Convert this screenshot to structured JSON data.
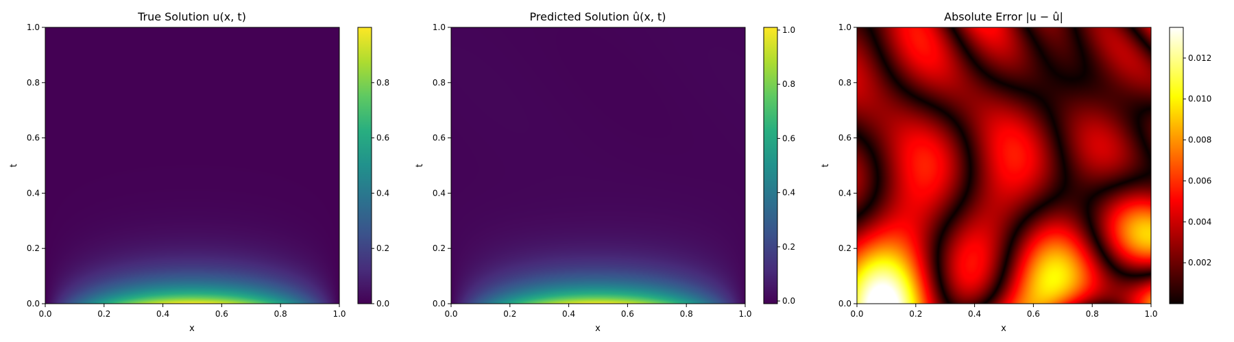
{
  "chart_data": [
    {
      "type": "heatmap",
      "title": "True Solution u(x, t)",
      "xlabel": "x",
      "ylabel": "t",
      "xlim": [
        0,
        1
      ],
      "ylim": [
        0,
        1
      ],
      "x_ticks": [
        "0.0",
        "0.2",
        "0.4",
        "0.6",
        "0.8",
        "1.0"
      ],
      "y_ticks": [
        "0.0",
        "0.2",
        "0.4",
        "0.6",
        "0.8",
        "1.0"
      ],
      "colormap": "viridis",
      "colorbar_range": [
        0,
        1.0
      ],
      "colorbar_ticks": [
        "0.0",
        "0.2",
        "0.4",
        "0.6",
        "0.8"
      ],
      "field": "u(x,t) = sin(pi x) exp(-pi^2 k t), peak 1.0 at (0.5, 0), decays to ~0 by t = 0.4"
    },
    {
      "type": "heatmap",
      "title": "Predicted Solution û(x, t)",
      "xlabel": "x",
      "ylabel": "t",
      "xlim": [
        0,
        1
      ],
      "ylim": [
        0,
        1
      ],
      "x_ticks": [
        "0.0",
        "0.2",
        "0.4",
        "0.6",
        "0.8",
        "1.0"
      ],
      "y_ticks": [
        "0.0",
        "0.2",
        "0.4",
        "0.6",
        "0.8",
        "1.0"
      ],
      "colormap": "viridis",
      "colorbar_range": [
        -0.01,
        1.01
      ],
      "colorbar_ticks": [
        "0.0",
        "0.2",
        "0.4",
        "0.6",
        "0.8",
        "1.0"
      ]
    },
    {
      "type": "heatmap",
      "title": "Absolute Error |u − û|",
      "xlabel": "x",
      "ylabel": "t",
      "xlim": [
        0,
        1
      ],
      "ylim": [
        0,
        1
      ],
      "x_ticks": [
        "0.0",
        "0.2",
        "0.4",
        "0.6",
        "0.8",
        "1.0"
      ],
      "y_ticks": [
        "0.0",
        "0.2",
        "0.4",
        "0.6",
        "0.8",
        "1.0"
      ],
      "colormap": "hot",
      "colorbar_range": [
        0,
        0.0135
      ],
      "colorbar_ticks": [
        "0.002",
        "0.004",
        "0.006",
        "0.008",
        "0.010",
        "0.012"
      ],
      "max_error_approx": 0.013
    }
  ]
}
